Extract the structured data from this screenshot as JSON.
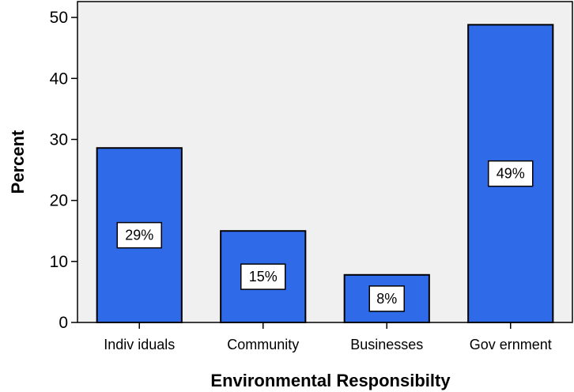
{
  "chart_data": {
    "type": "bar",
    "title": "",
    "xlabel": "Environmental Responsibilty",
    "ylabel": "Percent",
    "categories": [
      "Individuals",
      "Community",
      "Businesses",
      "Government"
    ],
    "category_labels": [
      "Indiv iduals",
      "Community",
      "Businesses",
      "Gov ernment"
    ],
    "values": [
      28.6,
      15.0,
      7.8,
      48.8
    ],
    "data_labels": [
      "29%",
      "15%",
      "8%",
      "49%"
    ],
    "yticks": [
      0,
      10,
      20,
      30,
      40,
      50
    ],
    "ylim": [
      0,
      52.6
    ],
    "grid": false,
    "legend": "none"
  },
  "colors": {
    "bar_fill": "#2f6be8",
    "plot_background": "#f0f0f0",
    "label_box": "#ffffff",
    "outline": "#000000"
  }
}
